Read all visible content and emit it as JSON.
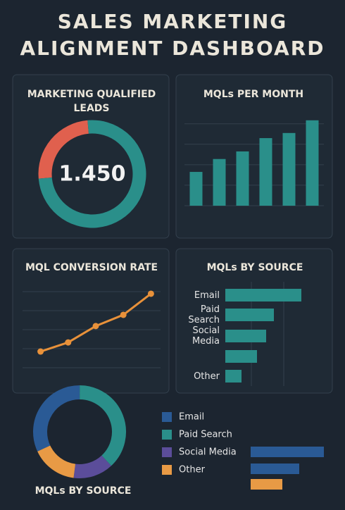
{
  "title": "SALES MARKETING ALIGNMENT DASHBOARD",
  "chart_data": [
    {
      "type": "donut",
      "title": "MARKETING QUALIFIED LEADS",
      "center_label": "1.450",
      "categories": [
        null,
        null
      ],
      "values": [
        25,
        75
      ],
      "colors": [
        "#e0604e",
        "#2a8f8a"
      ]
    },
    {
      "type": "bar",
      "title": "MQLs PER MONTH",
      "categories": [
        null,
        null,
        null,
        null,
        null,
        null
      ],
      "values": [
        1.65,
        2.28,
        2.65,
        3.3,
        3.55,
        4.17
      ],
      "color": "#2a8f8a",
      "ylim": [
        0,
        4.3
      ],
      "yticks": [
        0,
        1,
        2,
        3,
        4
      ],
      "grid": true
    },
    {
      "type": "line",
      "title": "MQL CONVERSION RATE",
      "categories": [
        null,
        null,
        null,
        null,
        null
      ],
      "values": [
        0.85,
        1.33,
        2.19,
        2.78,
        3.89
      ],
      "color": "#e8913a",
      "ylim": [
        0,
        4
      ],
      "yticks": [
        0,
        1,
        2,
        3,
        4
      ],
      "grid": true
    },
    {
      "type": "hbar",
      "title": "MQLs BY SOURCE",
      "categories": [
        "Email",
        "Paid Search",
        "Social Media",
        null,
        "Other"
      ],
      "values": [
        108,
        69,
        58,
        45,
        23
      ],
      "color": "#2a8f8a",
      "xlim": [
        0,
        150
      ]
    },
    {
      "type": "donut",
      "title": "MQLs BY SOURCE",
      "categories": [
        "Email",
        "Paid Search",
        "Social Media",
        "Other"
      ],
      "values": [
        32,
        38,
        14,
        16
      ],
      "colors": [
        "#2a5a95",
        "#2a8f8a",
        "#5b4d9a",
        "#e89a45"
      ],
      "legend": "right"
    },
    {
      "type": "hbar",
      "categories": [
        null,
        null,
        null
      ],
      "values": [
        104,
        69,
        45
      ],
      "colors": [
        "#2a5a95",
        "#2a5a95",
        "#e89a45"
      ],
      "xlim": [
        0,
        150
      ]
    }
  ]
}
